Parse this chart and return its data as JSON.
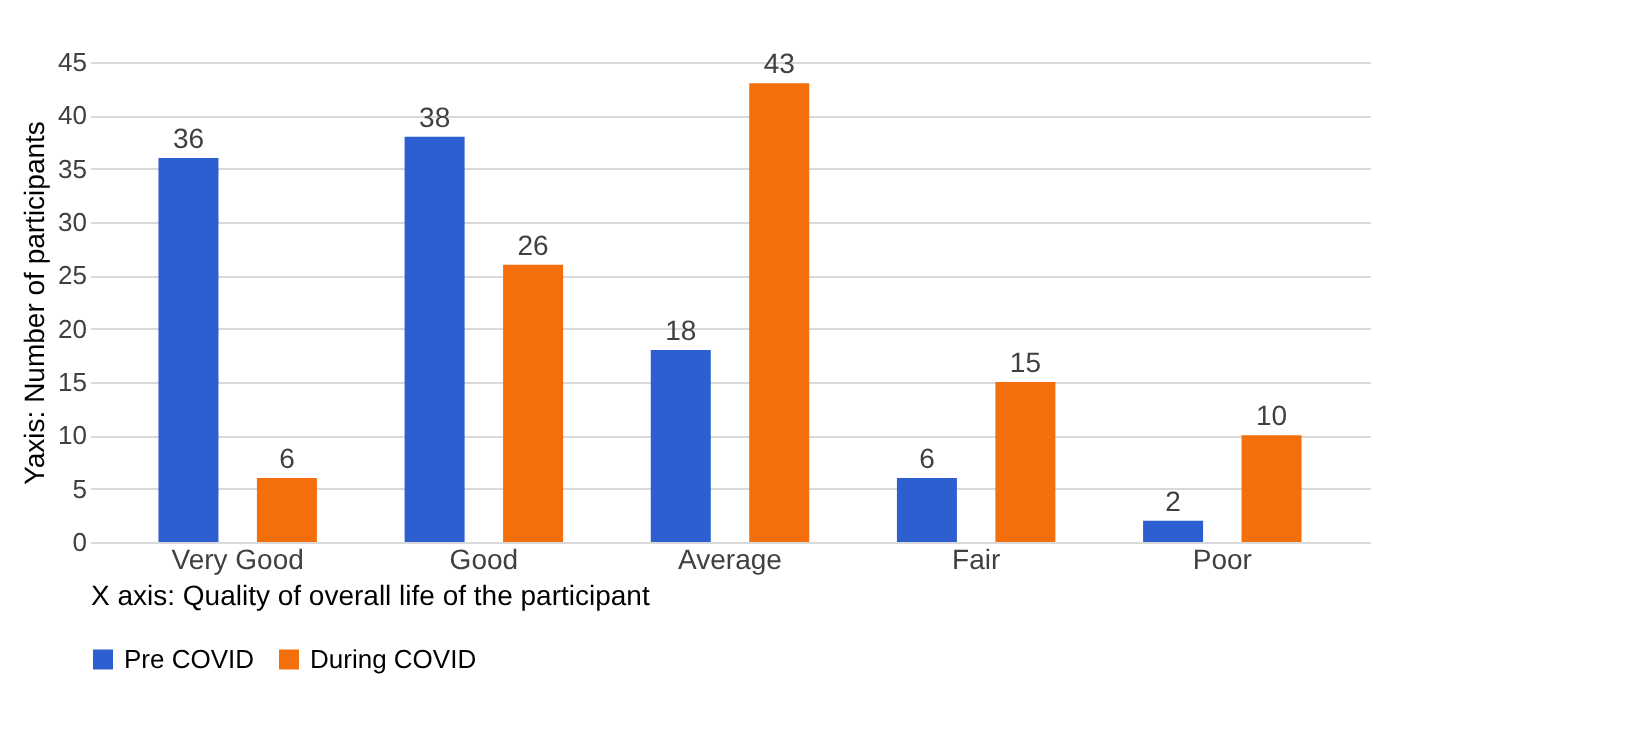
{
  "chart_data": {
    "type": "bar",
    "xlabel": "X axis: Quality of overall life of the participant",
    "ylabel": "Yaxis: Number of participants",
    "categories": [
      "Very Good",
      "Good",
      "Average",
      "Fair",
      "Poor"
    ],
    "series": [
      {
        "name": "Pre COVID",
        "color": "#2e5fd0",
        "values": [
          36,
          38,
          18,
          6,
          2
        ]
      },
      {
        "name": "During COVID",
        "color": "#f46e0c",
        "values": [
          6,
          26,
          43,
          15,
          10
        ]
      }
    ],
    "ylim": [
      0,
      45
    ],
    "yticks": [
      0,
      5,
      10,
      15,
      20,
      25,
      30,
      35,
      40,
      45
    ],
    "grid": "y",
    "legend": "bottom",
    "data_labels": true
  }
}
